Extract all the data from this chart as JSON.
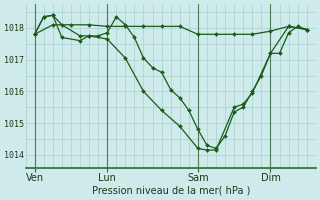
{
  "background_color": "#ceeaea",
  "grid_color": "#aacfcf",
  "line_color": "#1a5c1a",
  "marker_color": "#1a5c1a",
  "xlabel": "Pression niveau de la mer( hPa )",
  "ylabel_ticks": [
    1014,
    1015,
    1016,
    1017,
    1018
  ],
  "xtick_labels": [
    "Ven",
    "Lun",
    "Sam",
    "Dim"
  ],
  "xtick_positions": [
    0,
    4,
    9,
    13
  ],
  "xlim": [
    -0.5,
    15.5
  ],
  "ylim": [
    1013.6,
    1018.75
  ],
  "vline_positions": [
    0,
    4,
    9,
    13
  ],
  "series": [
    {
      "x": [
        0,
        1,
        2,
        3,
        4,
        5,
        6,
        7,
        8,
        9,
        10,
        11,
        12,
        13,
        14,
        15
      ],
      "y": [
        1017.8,
        1018.1,
        1018.1,
        1018.1,
        1018.05,
        1018.05,
        1018.05,
        1018.05,
        1018.05,
        1017.8,
        1017.8,
        1017.8,
        1017.8,
        1017.9,
        1018.05,
        1017.95
      ]
    },
    {
      "x": [
        0,
        0.5,
        1,
        1.5,
        2.5,
        3,
        3.5,
        4,
        4.5,
        5,
        5.5,
        6,
        6.5,
        7,
        7.5,
        8,
        8.5,
        9,
        9.5,
        10,
        10.5,
        11,
        11.5,
        12,
        12.5,
        13,
        13.5,
        14,
        14.5,
        15
      ],
      "y": [
        1017.8,
        1018.35,
        1018.4,
        1018.1,
        1017.75,
        1017.75,
        1017.75,
        1017.85,
        1018.35,
        1018.1,
        1017.7,
        1017.05,
        1016.75,
        1016.6,
        1016.05,
        1015.8,
        1015.4,
        1014.8,
        1014.3,
        1014.2,
        1014.6,
        1015.35,
        1015.5,
        1016.0,
        1016.5,
        1017.2,
        1017.2,
        1017.85,
        1018.05,
        1017.95
      ]
    },
    {
      "x": [
        0,
        0.5,
        1,
        1.5,
        2.5,
        3,
        4,
        5,
        6,
        7,
        8,
        9,
        9.5,
        10,
        11,
        11.5,
        12,
        13,
        14,
        15
      ],
      "y": [
        1017.8,
        1018.35,
        1018.4,
        1017.7,
        1017.6,
        1017.75,
        1017.65,
        1017.05,
        1016.0,
        1015.4,
        1014.9,
        1014.2,
        1014.15,
        1014.15,
        1015.5,
        1015.6,
        1015.95,
        1017.2,
        1018.05,
        1017.95
      ]
    }
  ]
}
